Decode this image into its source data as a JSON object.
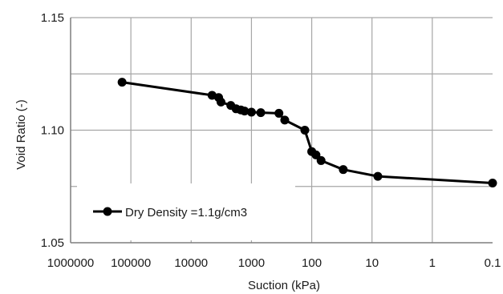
{
  "chart_data": {
    "type": "line",
    "title": "",
    "xlabel": "Suction (kPa)",
    "ylabel": "Void Ratio (-)",
    "xscale": "log",
    "x_direction": "reversed",
    "xlim": [
      1000000,
      0.1
    ],
    "ylim": [
      1.05,
      1.15
    ],
    "grid": true,
    "legend_position": "lower-left",
    "x_tick_labels": [
      "1000000",
      "100000",
      "10000",
      "1000",
      "100",
      "10",
      "1",
      "0.1"
    ],
    "x_ticks": [
      1000000,
      100000,
      10000,
      1000,
      100,
      10,
      1,
      0.1
    ],
    "y_tick_labels": [
      "1.05",
      "1.10",
      "1.15"
    ],
    "y_ticks": [
      1.05,
      1.1,
      1.15
    ],
    "series": [
      {
        "name": "Dry Density =1.1g/cm3",
        "color": "#000000",
        "marker": "circle",
        "x": [
          140000,
          4500,
          3500,
          3200,
          2200,
          1800,
          1500,
          1300,
          1000,
          700,
          350,
          280,
          130,
          100,
          85,
          70,
          30,
          8,
          0.1
        ],
        "y": [
          1.1213,
          1.1155,
          1.1145,
          1.1125,
          1.111,
          1.1095,
          1.109,
          1.1085,
          1.108,
          1.1078,
          1.1075,
          1.1045,
          1.1,
          1.0905,
          1.089,
          1.0865,
          1.0825,
          1.0795,
          1.0765
        ]
      }
    ]
  }
}
